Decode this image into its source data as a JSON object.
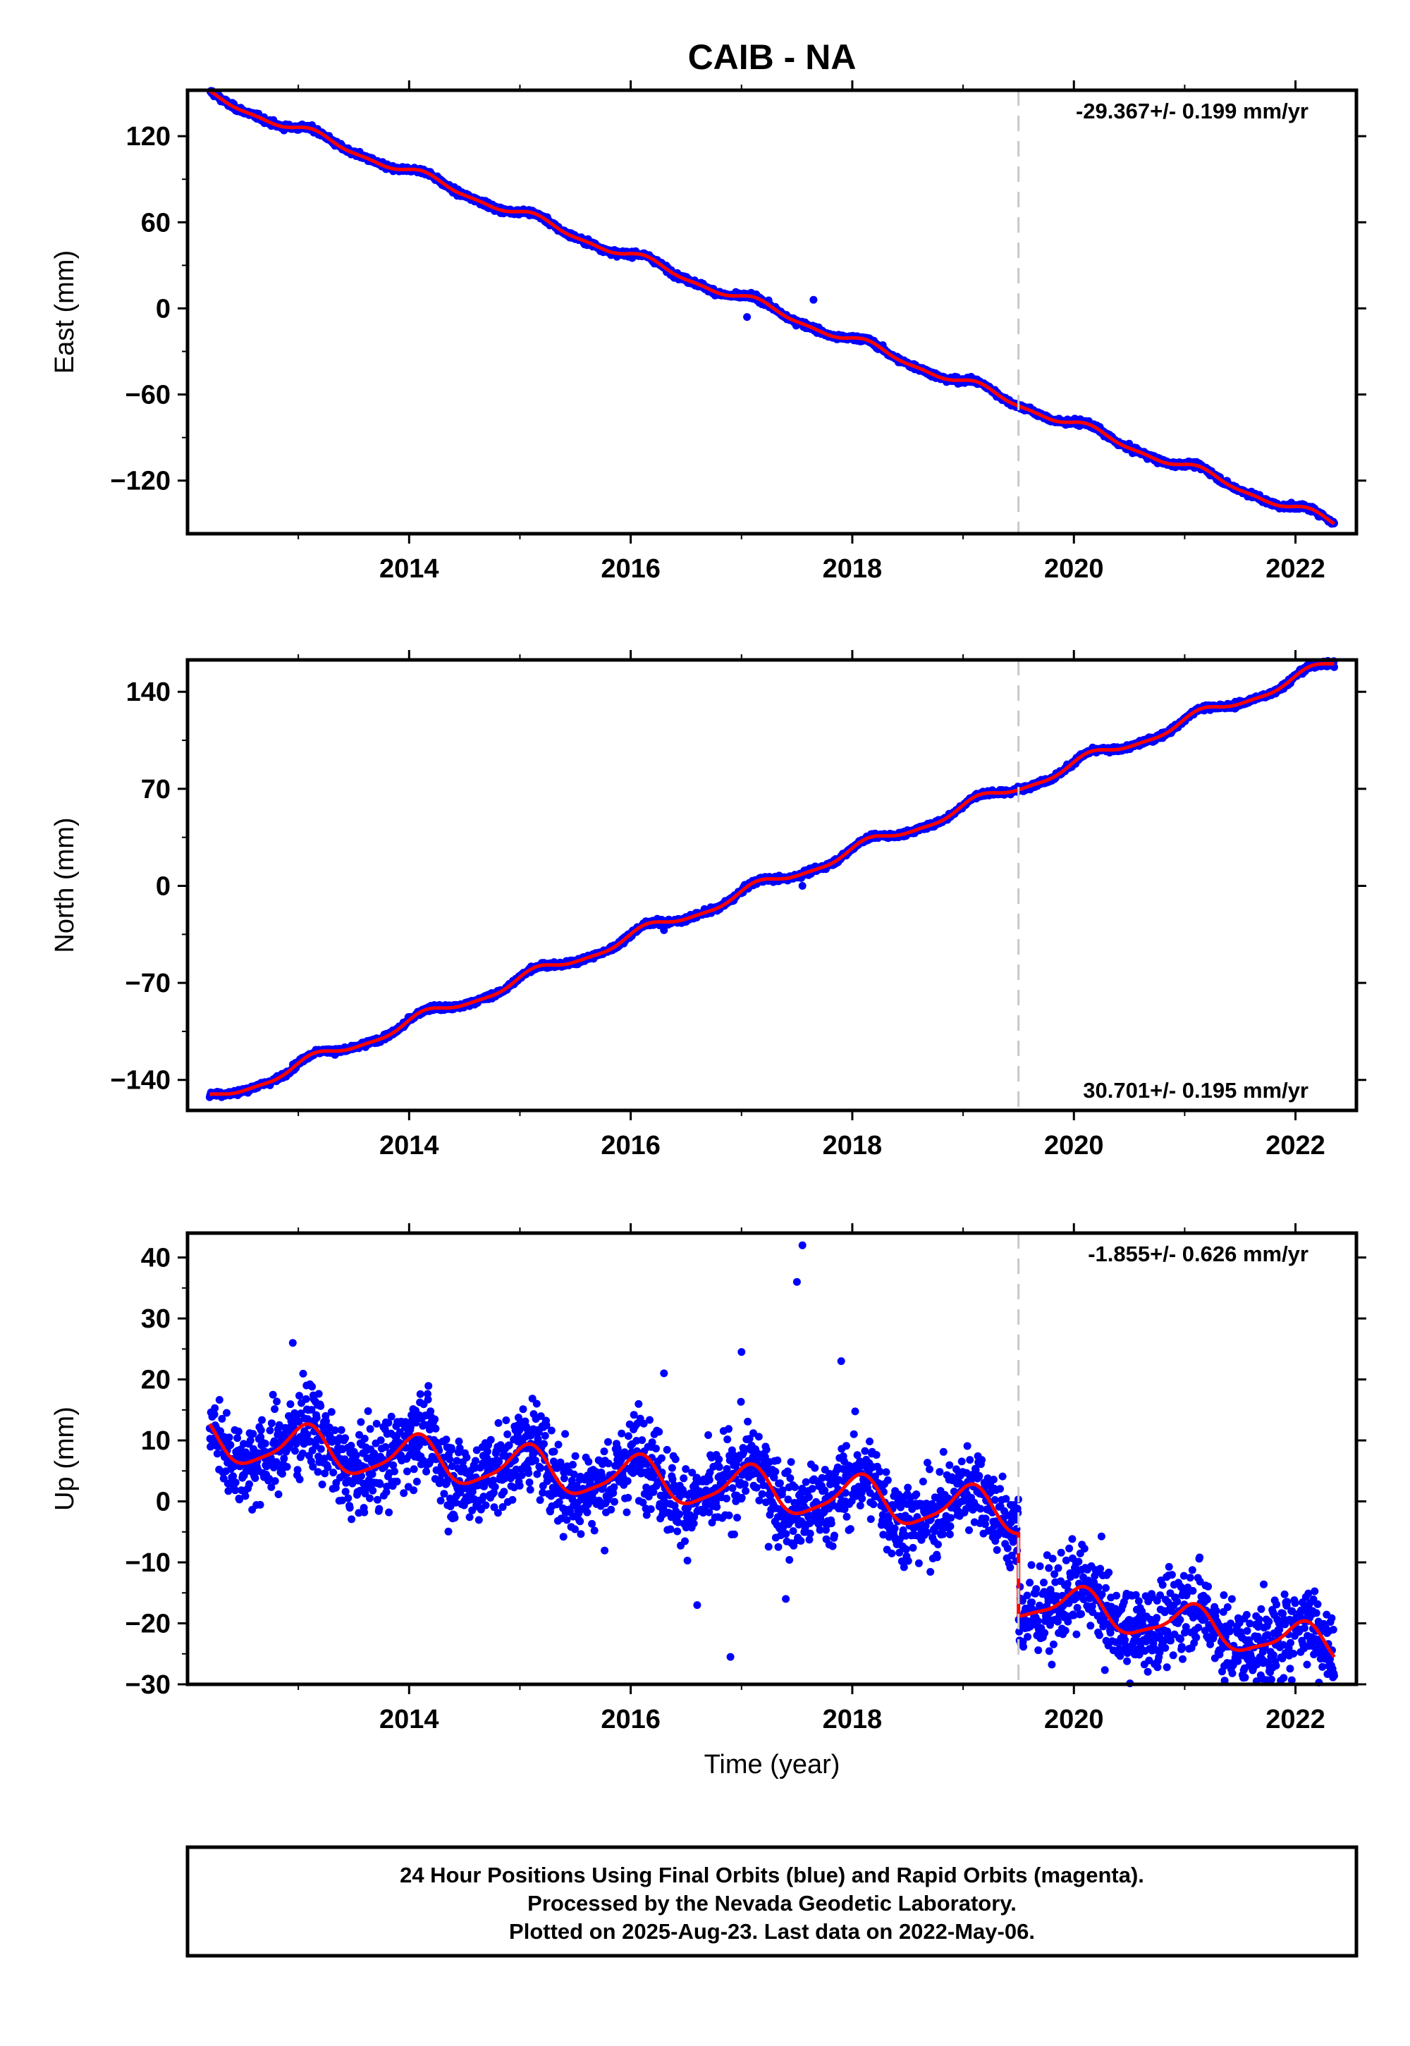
{
  "title": "CAIB - NA",
  "xlabel": "Time (year)",
  "colors": {
    "points": "#0000ff",
    "fit": "#ff0000",
    "offset_line": "#c8c8c8",
    "frame": "#000000"
  },
  "chart_data": [
    {
      "type": "scatter",
      "ylabel": "East (mm)",
      "rate_text": "-29.367+/- 0.199 mm/yr",
      "rate_position": "top-right",
      "xlim": [
        2012.0,
        2022.55
      ],
      "ylim": [
        -157,
        152
      ],
      "x_ticks": [
        2014,
        2016,
        2018,
        2020,
        2022
      ],
      "y_ticks": [
        120,
        60,
        0,
        -60,
        -120
      ],
      "y_tick_labels": [
        "120",
        "60",
        "0",
        "−60",
        "−120"
      ],
      "offset_year": 2019.5,
      "trend": {
        "start": [
          2012.2,
          148
        ],
        "end": [
          2022.35,
          -150
        ]
      },
      "seasonal_amplitude": 3,
      "scatter_spread": 2.5,
      "outliers": [
        [
          2017.05,
          -6
        ],
        [
          2017.65,
          6
        ]
      ]
    },
    {
      "type": "scatter",
      "ylabel": "North (mm)",
      "rate_text": "30.701+/- 0.195 mm/yr",
      "rate_position": "bottom-right",
      "xlim": [
        2012.0,
        2022.55
      ],
      "ylim": [
        -162,
        163
      ],
      "x_ticks": [
        2014,
        2016,
        2018,
        2020,
        2022
      ],
      "y_ticks": [
        140,
        70,
        0,
        -70,
        -140
      ],
      "y_tick_labels": [
        "140",
        "70",
        "0",
        "−70",
        "−140"
      ],
      "offset_year": 2019.5,
      "trend": {
        "start": [
          2012.2,
          -155
        ],
        "end": [
          2022.35,
          160
        ]
      },
      "seasonal_amplitude": 4,
      "scatter_spread": 2.5,
      "outliers": [
        [
          2017.55,
          0
        ],
        [
          2016.3,
          -32
        ]
      ]
    },
    {
      "type": "scatter",
      "ylabel": "Up (mm)",
      "rate_text": "-1.855+/- 0.626 mm/yr",
      "rate_position": "top-right",
      "xlim": [
        2012.0,
        2022.55
      ],
      "ylim": [
        -30,
        44
      ],
      "x_ticks": [
        2014,
        2016,
        2018,
        2020,
        2022
      ],
      "y_ticks": [
        40,
        30,
        20,
        10,
        0,
        -10,
        -20,
        -30
      ],
      "y_tick_labels": [
        "40",
        "30",
        "20",
        "10",
        "0",
        "−10",
        "−20",
        "−30"
      ],
      "offset_year": 2019.5,
      "fit_segments": [
        {
          "x0": 2012.2,
          "x1": 2019.5,
          "base_start": 10,
          "base_end": -2,
          "amplitude": 3.5
        },
        {
          "x0": 2019.5,
          "x1": 2022.35,
          "base_start": -16,
          "base_end": -24,
          "amplitude": 3
        }
      ],
      "scatter_spread": 9,
      "outliers": [
        [
          2017.55,
          42
        ],
        [
          2017.5,
          36
        ],
        [
          2017.0,
          24.5
        ],
        [
          2012.95,
          26
        ],
        [
          2017.9,
          23
        ],
        [
          2016.3,
          21
        ],
        [
          2017.4,
          -16
        ],
        [
          2016.9,
          -25.5
        ],
        [
          2016.6,
          -17
        ]
      ]
    }
  ],
  "footer": {
    "line1": "24 Hour Positions Using Final Orbits (blue) and Rapid Orbits (magenta).",
    "line2": "Processed by the Nevada Geodetic Laboratory.",
    "line3": "Plotted on 2025-Aug-23. Last data on 2022-May-06."
  }
}
